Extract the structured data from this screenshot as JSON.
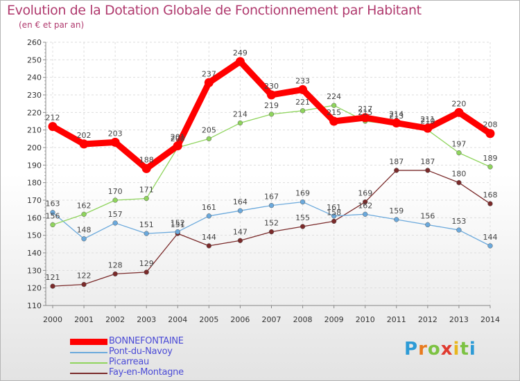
{
  "title": "Evolution de la Dotation Globale de Fonctionnement par Habitant",
  "subtitle": "(en € et par an)",
  "logo": {
    "letters": [
      "P",
      "r",
      "o",
      "x",
      "i",
      "t",
      "i"
    ],
    "colors": [
      "#2d9bd6",
      "#e87a1e",
      "#7cc242",
      "#e03a2f",
      "#e8b61e",
      "#7cc242",
      "#2d9bd6"
    ]
  },
  "chart_data": {
    "type": "line",
    "title": "Evolution de la Dotation Globale de Fonctionnement par Habitant",
    "subtitle": "(en € et par an)",
    "xlabel": "",
    "ylabel": "",
    "ylim": [
      110,
      260
    ],
    "yticks": [
      110,
      120,
      130,
      140,
      150,
      160,
      170,
      180,
      190,
      200,
      210,
      220,
      230,
      240,
      250,
      260
    ],
    "categories": [
      "2000",
      "2001",
      "2002",
      "2003",
      "2004",
      "2005",
      "2006",
      "2007",
      "2008",
      "2009",
      "2010",
      "2011",
      "2012",
      "2013",
      "2014"
    ],
    "grid": true,
    "legend": "bottom-left",
    "series": [
      {
        "name": "BONNEFONTAINE",
        "color": "#ff0000",
        "values": [
          212,
          202,
          203,
          188,
          201,
          237,
          249,
          230,
          233,
          215,
          217,
          214,
          211,
          220,
          208
        ]
      },
      {
        "name": "Pont-du-Navoy",
        "color": "#6ba9dc",
        "values": [
          163,
          148,
          157,
          151,
          152,
          161,
          164,
          167,
          169,
          161,
          162,
          159,
          156,
          153,
          144
        ]
      },
      {
        "name": "Picarreau",
        "color": "#8fd45d",
        "values": [
          156,
          162,
          170,
          171,
          200,
          205,
          214,
          219,
          221,
          224,
          215,
          213,
          210,
          197,
          189
        ]
      },
      {
        "name": "Fay-en-Montagne",
        "color": "#7a2a2a",
        "values": [
          121,
          122,
          128,
          129,
          151,
          144,
          147,
          152,
          155,
          158,
          169,
          187,
          187,
          180,
          168
        ]
      }
    ]
  }
}
